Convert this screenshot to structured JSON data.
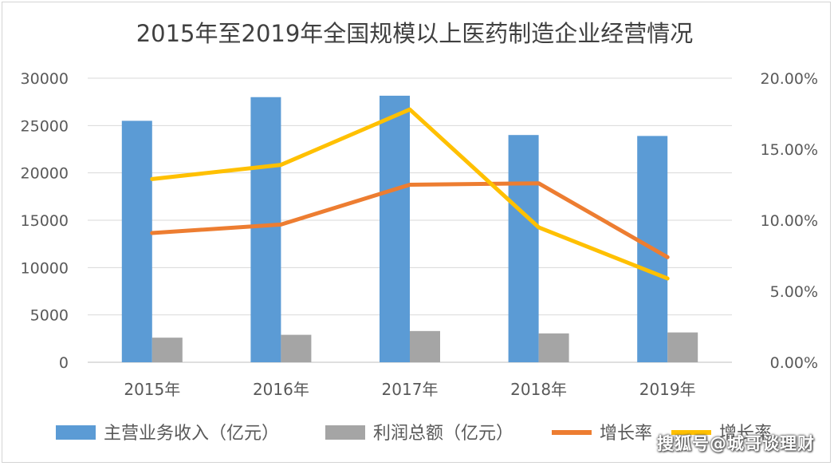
{
  "chart_data": {
    "type": "bar",
    "title": "2015年至2019年全国规模以上医药制造企业经营情况",
    "categories": [
      "2015年",
      "2016年",
      "2017年",
      "2018年",
      "2019年"
    ],
    "y_left": {
      "ylim": [
        0,
        30000
      ],
      "ticks": [
        "0",
        "5000",
        "10000",
        "15000",
        "20000",
        "25000",
        "30000"
      ]
    },
    "y_right": {
      "ylim": [
        0,
        0.2
      ],
      "ticks": [
        "0.00%",
        "5.00%",
        "10.00%",
        "15.00%",
        "20.00%"
      ]
    },
    "series": [
      {
        "name": "主营业务收入（亿元）",
        "type": "bar",
        "axis": "left",
        "color": "#5b9bd5",
        "values": [
          25500,
          28000,
          28150,
          24000,
          23900
        ]
      },
      {
        "name": "利润总额（亿元）",
        "type": "bar",
        "axis": "left",
        "color": "#a5a5a5",
        "values": [
          2600,
          2900,
          3300,
          3050,
          3150
        ]
      },
      {
        "name": "增长率",
        "type": "line",
        "axis": "right",
        "color": "#ed7d31",
        "values": [
          0.091,
          0.097,
          0.125,
          0.126,
          0.074
        ]
      },
      {
        "name": "增长率",
        "type": "line",
        "axis": "right",
        "color": "#ffc000",
        "values": [
          0.129,
          0.139,
          0.178,
          0.095,
          0.059
        ]
      }
    ],
    "grid": true,
    "legend": "bottom"
  },
  "watermark": "搜狐号@城哥谈理财"
}
